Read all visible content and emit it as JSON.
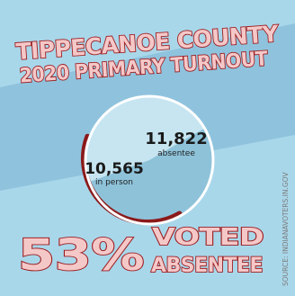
{
  "title": {
    "line1": "TIPPECANOE COUNTY",
    "line2": "2020 PRIMARY TURNOUT"
  },
  "headline": {
    "percent": "53%",
    "line1": "VOTED",
    "line2": "ABSENTEE"
  },
  "source": "SOURCE: INDIANAVOTERS.IN.GOV",
  "colors": {
    "background": "#a9d7ea",
    "diagonal_band": "#8fc3dd",
    "absentee_slice": "#8ec2d9",
    "in_person_slice": "#c6e5f1",
    "ring": "#8b1a1a",
    "title_fill": "#f5c8c8",
    "title_outline": "#9b1c1f"
  },
  "chart_data": {
    "type": "pie",
    "slices": [
      {
        "label": "absentee",
        "value": 11822,
        "value_text": "11,822",
        "color": "#8ec2d9"
      },
      {
        "label": "in person",
        "value": 10565,
        "value_text": "10,565",
        "color": "#c6e5f1"
      }
    ]
  }
}
